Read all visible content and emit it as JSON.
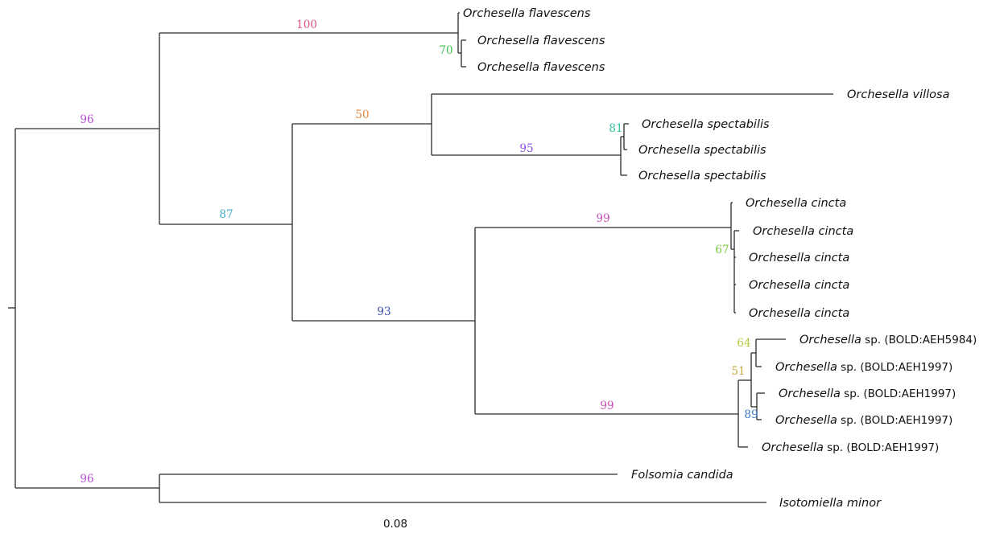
{
  "tree": {
    "scale_label": "0.08",
    "taxa": [
      {
        "genus": "Orchesella flavescens",
        "code": ""
      },
      {
        "genus": "Orchesella flavescens",
        "code": ""
      },
      {
        "genus": "Orchesella flavescens",
        "code": ""
      },
      {
        "genus": "Orchesella villosa",
        "code": ""
      },
      {
        "genus": "Orchesella spectabilis",
        "code": ""
      },
      {
        "genus": "Orchesella spectabilis",
        "code": ""
      },
      {
        "genus": "Orchesella spectabilis",
        "code": ""
      },
      {
        "genus": "Orchesella cincta",
        "code": ""
      },
      {
        "genus": "Orchesella cincta",
        "code": ""
      },
      {
        "genus": "Orchesella cincta",
        "code": ""
      },
      {
        "genus": "Orchesella cincta",
        "code": ""
      },
      {
        "genus": "Orchesella cincta",
        "code": ""
      },
      {
        "genus": "Orchesella",
        "code": " sp. (BOLD:AEH5984)"
      },
      {
        "genus": "Orchesella",
        "code": " sp. (BOLD:AEH1997)"
      },
      {
        "genus": "Orchesella",
        "code": " sp. (BOLD:AEH1997)"
      },
      {
        "genus": "Orchesella",
        "code": " sp. (BOLD:AEH1997)"
      },
      {
        "genus": "Orchesella",
        "code": " sp. (BOLD:AEH1997)"
      },
      {
        "genus": "Folsomia candida",
        "code": ""
      },
      {
        "genus": "Isotomiella minor",
        "code": ""
      }
    ],
    "support": [
      {
        "value": "100",
        "color": "#e0507a"
      },
      {
        "value": "70",
        "color": "#3cbf4a"
      },
      {
        "value": "96",
        "color": "#b24fd1"
      },
      {
        "value": "50",
        "color": "#e08a3c"
      },
      {
        "value": "81",
        "color": "#2fc4a0"
      },
      {
        "value": "95",
        "color": "#8a4fe0"
      },
      {
        "value": "87",
        "color": "#3cb0c8"
      },
      {
        "value": "99",
        "color": "#c44fb8"
      },
      {
        "value": "67",
        "color": "#7ac83c"
      },
      {
        "value": "93",
        "color": "#3c4fb0"
      },
      {
        "value": "64",
        "color": "#b8c83c"
      },
      {
        "value": "51",
        "color": "#c8a83c"
      },
      {
        "value": "99",
        "color": "#c44fb8"
      },
      {
        "value": "89",
        "color": "#3c7ac8"
      },
      {
        "value": "96",
        "color": "#b24fd1"
      }
    ]
  }
}
